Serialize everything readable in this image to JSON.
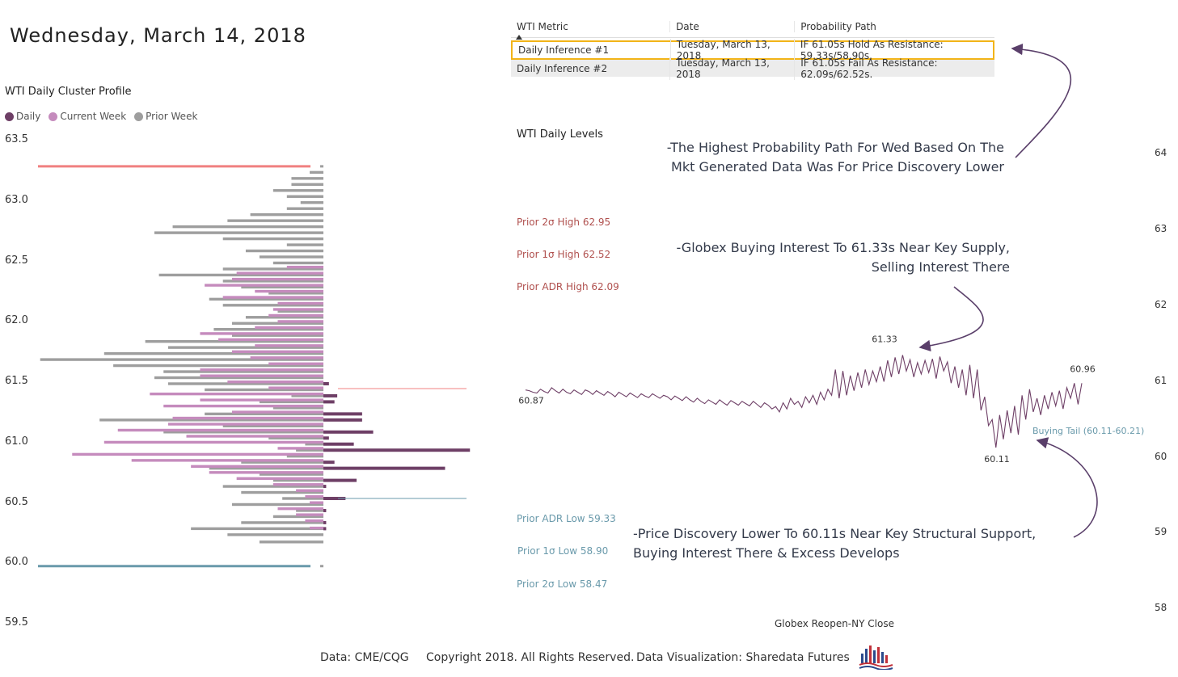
{
  "header": {
    "date": "Wednesday, March 14, 2018"
  },
  "profile": {
    "title": "WTI Daily Cluster Profile",
    "legend": [
      {
        "label": "Daily",
        "color": "#6e3f66"
      },
      {
        "label": "Current Week",
        "color": "#c58bbd"
      },
      {
        "label": "Prior Week",
        "color": "#9e9e9e"
      }
    ],
    "y_ticks": [
      "63.5",
      "63.0",
      "62.5",
      "62.0",
      "61.5",
      "61.0",
      "60.5",
      "60.0",
      "59.5"
    ]
  },
  "table": {
    "columns": [
      "WTI Metric",
      "Date",
      "Probability Path"
    ],
    "rows": [
      {
        "metric": "Daily Inference #1",
        "date": "Tuesday, March 13, 2018",
        "path": "IF 61.05s Hold As Resistance: 59.33s/58.90s."
      },
      {
        "metric": "Daily Inference #2",
        "date": "Tuesday, March 13, 2018",
        "path": "IF 61.05s Fail As Resistance: 62.09s/62.52s."
      }
    ]
  },
  "levels": {
    "title": "WTI Daily Levels",
    "prior_2sd_high": "Prior 2σ High 62.95",
    "prior_1sd_high": "Prior 1σ High 62.52",
    "prior_adr_high": "Prior ADR High 62.09",
    "prior_adr_low": "Prior ADR Low 59.33",
    "prior_1sd_low": "Prior 1σ Low 58.90",
    "prior_2sd_low": "Prior 2σ Low 58.47",
    "right_ticks": [
      "64",
      "63",
      "62",
      "61",
      "60",
      "59",
      "58"
    ],
    "x_label": "Globex Reopen-NY Close"
  },
  "annotations": {
    "top": "-The Highest Probability Path For Wed Based On The\nMkt Generated Data Was For Price Discovery Lower",
    "middle": "-Globex Buying Interest To 61.33s Near Key Supply,\nSelling Interest There",
    "bottom": "-Price Discovery Lower To 60.11s Near Key Structural Support,\nBuying Interest There & Excess Develops"
  },
  "footer": {
    "data_source": "Data: CME/CQG",
    "copyright": "Copyright 2018. All Rights Reserved.",
    "viz": "Data Visualization: Sharedata Futures"
  },
  "chart_data": [
    {
      "type": "bar",
      "orientation": "horizontal",
      "title": "WTI Daily Cluster Profile",
      "ylim": [
        59.5,
        63.5
      ],
      "y_ticks": [
        59.5,
        60.0,
        60.5,
        61.0,
        61.5,
        62.0,
        62.5,
        63.0,
        63.5
      ],
      "reference_lines": [
        {
          "name": "top-boundary",
          "value": 63.28,
          "color": "#f08080"
        },
        {
          "name": "bottom-boundary",
          "value": 59.97,
          "color": "#6a9aab"
        }
      ],
      "series": [
        {
          "name": "Prior Week",
          "color": "#9e9e9e",
          "prices": [
            60.17,
            60.23,
            60.28,
            60.33,
            60.38,
            60.43,
            60.48,
            60.53,
            60.58,
            60.63,
            60.68,
            60.73,
            60.78,
            60.83,
            60.88,
            60.93,
            60.98,
            61.03,
            61.08,
            61.13,
            61.18,
            61.23,
            61.28,
            61.33,
            61.38,
            61.43,
            61.48,
            61.53,
            61.58,
            61.63,
            61.68,
            61.73,
            61.78,
            61.83,
            61.88,
            61.93,
            61.98,
            62.03,
            62.08,
            62.13,
            62.18,
            62.23,
            62.28,
            62.33,
            62.38,
            62.43,
            62.48,
            62.53,
            62.58,
            62.63,
            62.68,
            62.73,
            62.78,
            62.83,
            62.88,
            62.93,
            62.98,
            63.03,
            63.08,
            63.13,
            63.18,
            63.23
          ],
          "volumes": [
            14,
            21,
            29,
            18,
            11,
            6,
            20,
            9,
            18,
            22,
            11,
            14,
            25,
            18,
            8,
            6,
            4,
            12,
            35,
            22,
            49,
            26,
            11,
            14,
            7,
            26,
            34,
            37,
            35,
            46,
            62,
            48,
            34,
            39,
            20,
            24,
            20,
            17,
            10,
            22,
            25,
            12,
            18,
            22,
            36,
            22,
            11,
            14,
            17,
            8,
            22,
            37,
            33,
            21,
            16,
            8,
            5,
            8,
            11,
            7,
            7,
            3
          ]
        },
        {
          "name": "Current Week",
          "color": "#c58bbd",
          "prices": [
            60.27,
            60.33,
            60.38,
            60.43,
            60.48,
            60.53,
            60.58,
            60.63,
            60.68,
            60.73,
            60.78,
            60.83,
            60.88,
            60.93,
            60.98,
            61.03,
            61.08,
            61.13,
            61.18,
            61.23,
            61.28,
            61.33,
            61.38,
            61.43,
            61.48,
            61.53,
            61.58,
            61.63,
            61.68,
            61.73,
            61.78,
            61.83,
            61.88,
            61.93,
            61.98,
            62.03,
            62.08,
            62.13,
            62.18,
            62.23,
            62.28,
            62.33,
            62.38,
            62.43
          ],
          "volumes": [
            3,
            4,
            6,
            10,
            3,
            4,
            6,
            11,
            19,
            25,
            29,
            42,
            55,
            10,
            48,
            30,
            45,
            34,
            33,
            20,
            35,
            27,
            38,
            12,
            21,
            27,
            27,
            12,
            16,
            20,
            15,
            23,
            27,
            15,
            10,
            12,
            11,
            10,
            22,
            15,
            26,
            20,
            19,
            8
          ],
          "unit": "relative"
        },
        {
          "name": "Daily",
          "color": "#6e3f66",
          "prices": [
            60.28,
            60.33,
            60.43,
            60.53,
            60.63,
            60.68,
            60.78,
            60.83,
            60.93,
            60.98,
            61.03,
            61.08,
            61.18,
            61.23,
            61.33,
            61.38,
            61.48
          ],
          "volumes": [
            1,
            1,
            1,
            8,
            1,
            12,
            44,
            4,
            53,
            11,
            2,
            18,
            14,
            14,
            4,
            5,
            2
          ]
        }
      ],
      "value_lines": [
        {
          "name": "value-area-high",
          "value": 61.44,
          "color": "#f08080"
        },
        {
          "name": "value-area-low",
          "value": 60.53,
          "color": "#6a9aab"
        }
      ]
    },
    {
      "type": "line",
      "title": "WTI Daily Levels",
      "xlabel": "Globex Reopen-NY Close",
      "ylim": [
        57.9,
        64.2
      ],
      "y_ticks": [
        58,
        59,
        60,
        61,
        62,
        63,
        64
      ],
      "annotated_points": [
        {
          "label": "60.87",
          "value": 60.87
        },
        {
          "label": "61.33",
          "value": 61.33
        },
        {
          "label": "60.11",
          "value": 60.11
        },
        {
          "label": "60.96",
          "value": 60.96
        }
      ],
      "buying_tail": {
        "label": "Buying Tail (60.11-60.21)",
        "low": 60.11,
        "high": 60.21
      },
      "series": [
        {
          "name": "WTI Price",
          "color": "#6e3f66",
          "values": [
            60.87,
            60.86,
            60.84,
            60.83,
            60.88,
            60.85,
            60.83,
            60.9,
            60.86,
            60.83,
            60.88,
            60.84,
            60.82,
            60.87,
            60.84,
            60.81,
            60.87,
            60.85,
            60.81,
            60.86,
            60.83,
            60.8,
            60.85,
            60.82,
            60.78,
            60.84,
            60.81,
            60.78,
            60.83,
            60.8,
            60.77,
            60.82,
            60.79,
            60.77,
            60.82,
            60.79,
            60.76,
            60.8,
            60.78,
            60.74,
            60.79,
            60.76,
            60.73,
            60.78,
            60.74,
            60.71,
            60.76,
            60.72,
            60.69,
            60.74,
            60.71,
            60.68,
            60.74,
            60.7,
            60.67,
            60.73,
            60.7,
            60.67,
            60.72,
            60.69,
            60.66,
            60.72,
            60.68,
            60.64,
            60.7,
            60.67,
            60.62,
            60.65,
            60.58,
            60.7,
            60.62,
            60.76,
            60.68,
            60.72,
            60.64,
            60.78,
            60.7,
            60.8,
            60.68,
            60.84,
            60.74,
            60.88,
            60.8,
            61.14,
            60.76,
            61.12,
            60.8,
            61.06,
            60.86,
            61.1,
            60.9,
            61.14,
            60.94,
            61.12,
            60.98,
            61.18,
            60.98,
            61.26,
            61.04,
            61.3,
            61.08,
            61.33,
            61.12,
            61.27,
            61.04,
            61.23,
            61.08,
            61.26,
            61.1,
            61.28,
            61.02,
            61.31,
            61.12,
            61.24,
            60.96,
            61.18,
            60.9,
            61.14,
            60.8,
            61.2,
            60.76,
            61.14,
            60.6,
            60.78,
            60.4,
            60.48,
            60.11,
            60.54,
            60.22,
            60.6,
            60.3,
            60.66,
            60.28,
            60.8,
            60.48,
            60.88,
            60.58,
            60.76,
            60.54,
            60.8,
            60.62,
            60.84,
            60.66,
            60.86,
            60.62,
            60.9,
            60.76,
            60.96,
            60.68,
            60.96
          ]
        }
      ]
    }
  ]
}
